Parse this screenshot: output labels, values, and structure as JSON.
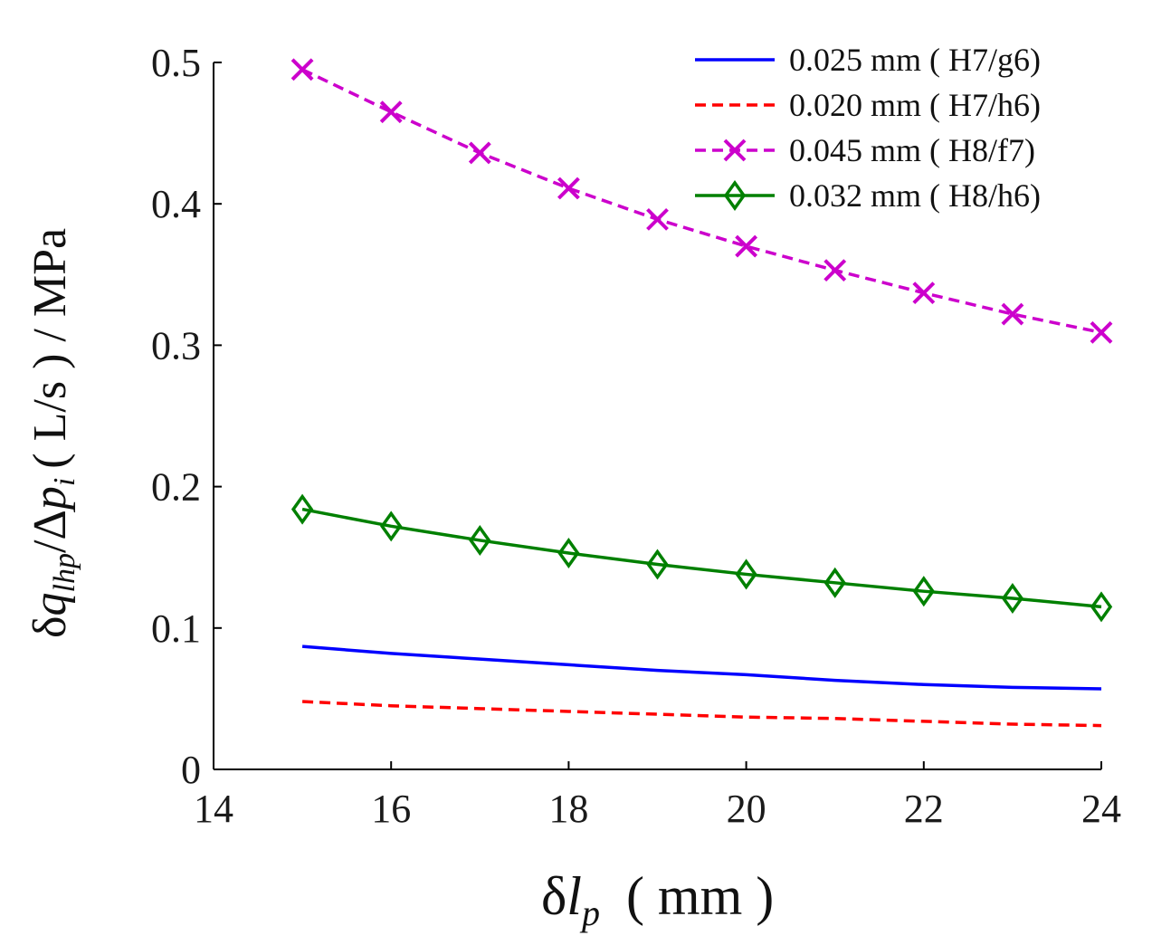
{
  "chart_data": {
    "type": "line",
    "xlabel": "δl_p ( mm )",
    "xlabel_parts": {
      "symbol": "δ",
      "var": "l",
      "sub": "p",
      "unit": " ( mm )"
    },
    "ylabel": "δq_lhp/Δp_i ( L/s ) / MPa",
    "ylabel_parts": {
      "d1": "δ",
      "q": "q",
      "qsub": "lhp",
      "slash": "/Δ",
      "p": "p",
      "psub": "i",
      "unit": "( L/s ) / MPa"
    },
    "xlim": [
      14,
      24
    ],
    "ylim": [
      0,
      0.5
    ],
    "xticks": [
      14,
      16,
      18,
      20,
      22,
      24
    ],
    "yticks": [
      0,
      0.1,
      0.2,
      0.3,
      0.4,
      0.5
    ],
    "ytick_labels": [
      "0",
      "0.1",
      "0.2",
      "0.3",
      "0.4",
      "0.5"
    ],
    "xtick_labels": [
      "14",
      "16",
      "18",
      "20",
      "22",
      "24"
    ],
    "grid": false,
    "legend_position": "top-right",
    "x": [
      15,
      16,
      17,
      18,
      19,
      20,
      21,
      22,
      23,
      24
    ],
    "series": [
      {
        "name": "0.025 mm ( H7/g6)",
        "color": "#0000ff",
        "dash": "solid",
        "marker": "none",
        "values": [
          0.087,
          0.082,
          0.078,
          0.074,
          0.07,
          0.067,
          0.063,
          0.06,
          0.058,
          0.057
        ]
      },
      {
        "name": "0.020 mm ( H7/h6)",
        "color": "#ff0000",
        "dash": "dashed",
        "marker": "none",
        "values": [
          0.048,
          0.045,
          0.043,
          0.041,
          0.039,
          0.037,
          0.036,
          0.034,
          0.032,
          0.031
        ]
      },
      {
        "name": "0.045 mm ( H8/f7)",
        "color": "#cc00cc",
        "dash": "dashed",
        "marker": "x",
        "values": [
          0.495,
          0.465,
          0.436,
          0.411,
          0.389,
          0.37,
          0.353,
          0.337,
          0.322,
          0.309
        ]
      },
      {
        "name": "0.032 mm ( H8/h6)",
        "color": "#008000",
        "dash": "solid",
        "marker": "diamond",
        "values": [
          0.184,
          0.172,
          0.162,
          0.153,
          0.145,
          0.138,
          0.132,
          0.126,
          0.121,
          0.115
        ]
      }
    ]
  }
}
